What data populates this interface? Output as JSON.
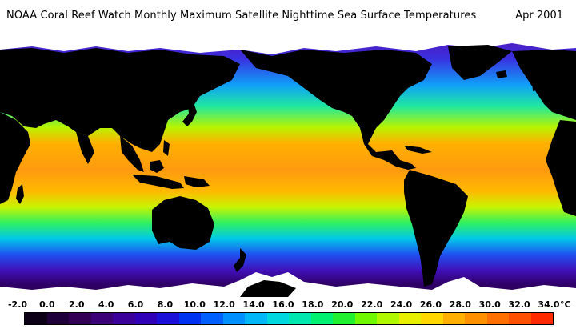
{
  "title": "NOAA Coral Reef Watch Monthly Maximum Satellite Nighttime Sea Surface Temperatures",
  "date": "Apr 2001",
  "legend": {
    "unit": "°C",
    "ticks": [
      "-2.0",
      "0.0",
      "2.0",
      "4.0",
      "6.0",
      "8.0",
      "10.0",
      "12.0",
      "14.0",
      "16.0",
      "18.0",
      "20.0",
      "22.0",
      "24.0",
      "26.0",
      "28.0",
      "30.0",
      "32.0",
      "34.0"
    ],
    "colors": [
      "#0b0016",
      "#20003a",
      "#330055",
      "#3c0077",
      "#3a0099",
      "#3000b8",
      "#1a10d8",
      "#0030f0",
      "#0060ff",
      "#0090ff",
      "#00b8f8",
      "#00d8e0",
      "#00e8b0",
      "#00f070",
      "#20f030",
      "#70f800",
      "#b0f800",
      "#e8f000",
      "#ffd800",
      "#ffb000",
      "#ff9000",
      "#ff7000",
      "#ff5000",
      "#ff2a00"
    ]
  },
  "colors": {
    "land": "#000000",
    "ice": "#ffffff",
    "ocean_warm": "#ff9a10",
    "ocean_cold": "#3c0078"
  }
}
